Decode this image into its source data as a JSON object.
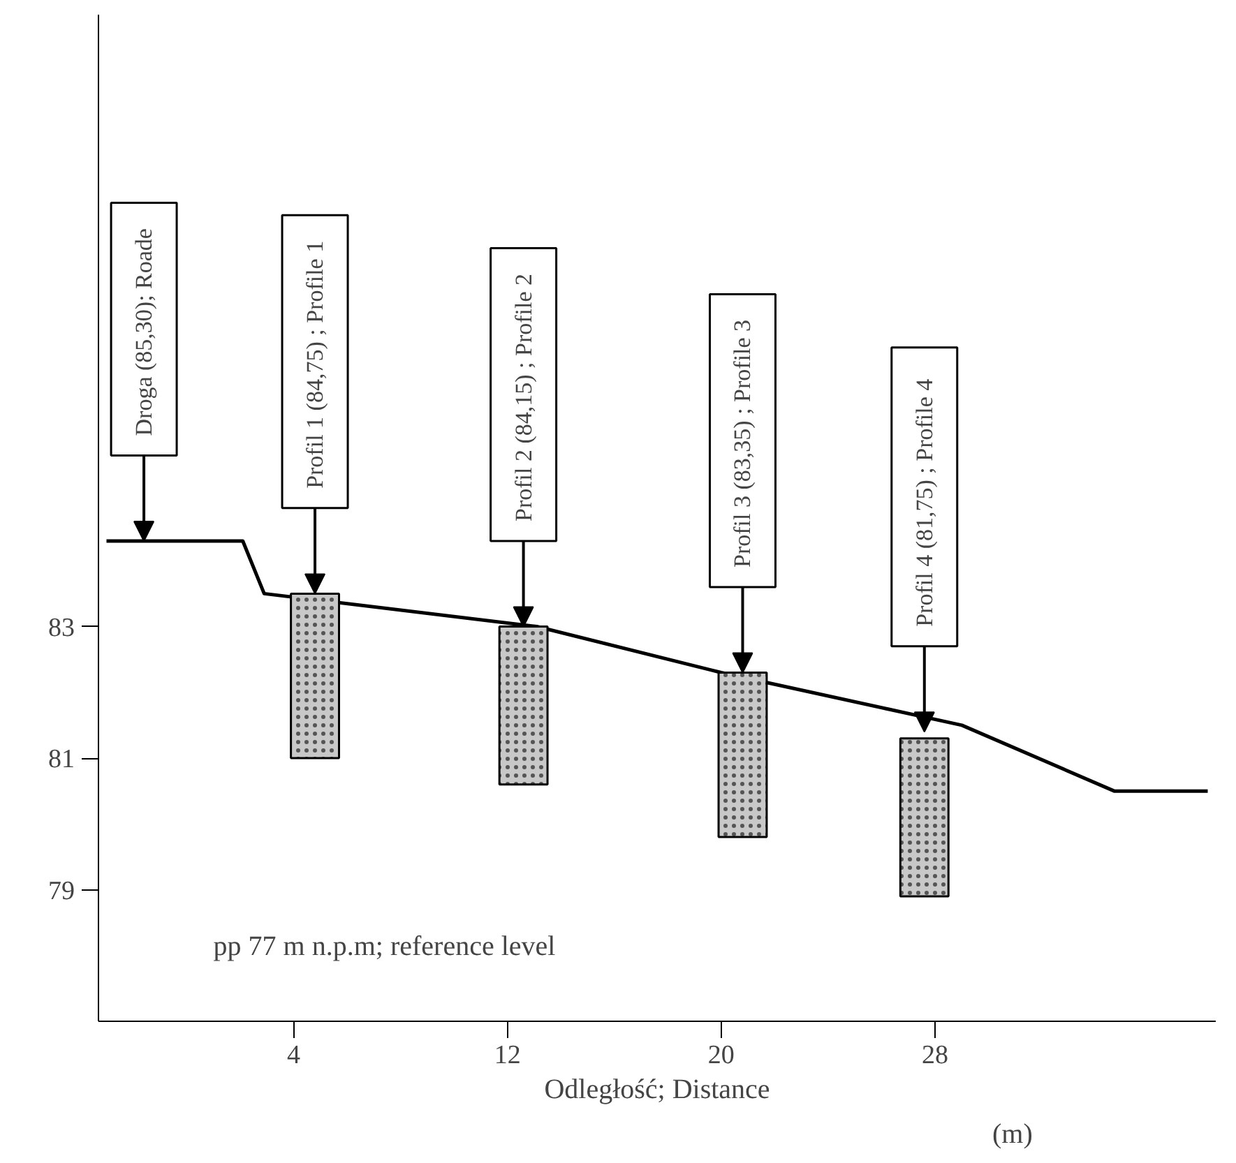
{
  "chart_data": {
    "type": "line",
    "xlabel": "Odległość; Distance",
    "xlim": [
      -3.3,
      38.5
    ],
    "ylim": [
      77,
      92.3
    ],
    "xticks": [
      4,
      12,
      20,
      28
    ],
    "yticks": [
      79,
      81,
      83
    ],
    "grid": false,
    "series": [
      {
        "color": "#000000",
        "x": [
          -3.0,
          2.1,
          2.9,
          13.1,
          20.0,
          29.0,
          34.7,
          38.2
        ],
        "values": [
          84.3,
          84.3,
          83.5,
          83.0,
          82.3,
          81.5,
          80.5,
          80.5
        ]
      },
      {
        "type": "bar",
        "color": "#c8c8c8",
        "x": [
          4.8,
          12.6,
          20.8,
          27.6
        ],
        "base": [
          81.0,
          80.6,
          79.8,
          78.9
        ],
        "values": [
          2.5,
          2.4,
          2.5,
          2.4
        ]
      }
    ],
    "annotations": [
      {
        "text": "Droga  (85,30); Roade",
        "x": -1.6,
        "y": 84.3
      },
      {
        "text": "Profil 1  (84,75) ; Profile 1",
        "x": 4.8,
        "y": 83.5
      },
      {
        "text": "Profil 2  (84,15) ; Profile 2",
        "x": 12.6,
        "y": 83.0
      },
      {
        "text": "Profil 3  (83,35) ; Profile 3",
        "x": 20.8,
        "y": 82.3
      },
      {
        "text": "Profil  4  (81,75) ; Profile 4",
        "x": 27.6,
        "y": 81.4
      },
      "pp  77 m  n.p.m; reference level",
      "(m)"
    ]
  }
}
